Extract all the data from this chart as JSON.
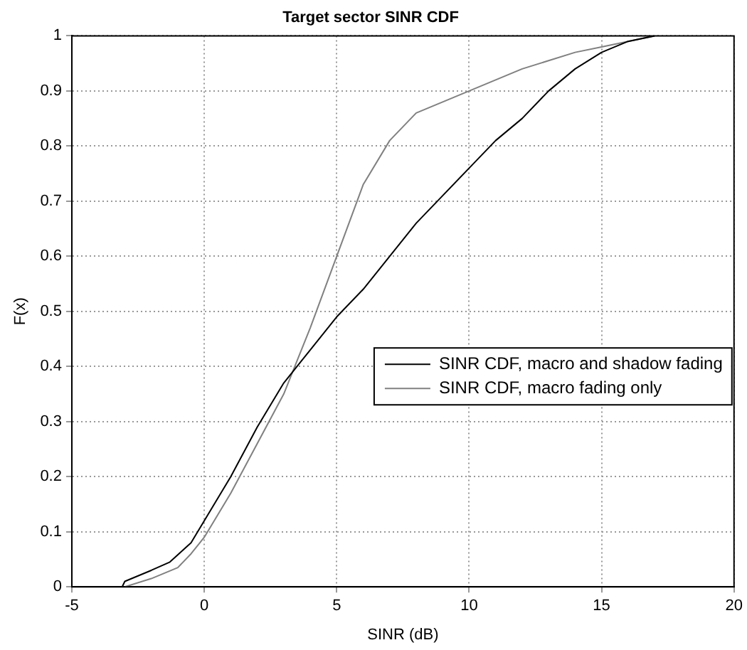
{
  "chart_data": {
    "type": "line",
    "title": "Target sector SINR CDF",
    "xlabel": "SINR (dB)",
    "ylabel": "F(x)",
    "xlim": [
      -5,
      20
    ],
    "xticks": [
      -5,
      0,
      5,
      10,
      15,
      20
    ],
    "ylim": [
      0,
      1
    ],
    "yticks": [
      0,
      0.1,
      0.2,
      0.3,
      0.4,
      0.5,
      0.6,
      0.7,
      0.8,
      0.9,
      1
    ],
    "grid": true,
    "legend": "bottom right",
    "marker": "none",
    "line_style": "solid",
    "series": [
      {
        "name": "SINR CDF, macro and shadow fading",
        "color": "#000000",
        "x": [
          -4.3,
          -3.1,
          -3,
          -2,
          -1.3,
          -0.5,
          0,
          1,
          2,
          3,
          4,
          5,
          6,
          7,
          8,
          9,
          10,
          11,
          12,
          13,
          14,
          15,
          16,
          17
        ],
        "values": [
          0,
          0,
          0.01,
          0.03,
          0.045,
          0.08,
          0.12,
          0.2,
          0.29,
          0.37,
          0.43,
          0.49,
          0.54,
          0.6,
          0.66,
          0.71,
          0.76,
          0.81,
          0.85,
          0.9,
          0.94,
          0.97,
          0.99,
          1
        ]
      },
      {
        "name": "SINR CDF, macro fading only",
        "color": "#808080",
        "x": [
          -3,
          -2,
          -1,
          -0.5,
          0,
          1,
          2,
          3,
          4,
          5,
          6,
          7,
          8,
          9,
          10,
          11,
          12,
          13,
          14,
          15,
          16,
          17
        ],
        "values": [
          0,
          0.015,
          0.035,
          0.06,
          0.09,
          0.17,
          0.26,
          0.35,
          0.47,
          0.6,
          0.73,
          0.81,
          0.86,
          0.88,
          0.9,
          0.92,
          0.94,
          0.955,
          0.97,
          0.98,
          0.99,
          1
        ]
      }
    ]
  }
}
